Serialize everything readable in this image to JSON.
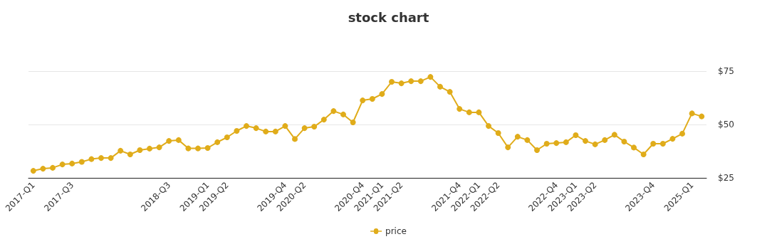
{
  "chart_data": {
    "type": "line",
    "title": "stock chart",
    "categories": [
      "2017-Q1",
      null,
      null,
      null,
      "2017-Q3",
      null,
      null,
      null,
      null,
      null,
      null,
      null,
      null,
      null,
      "2018-Q3",
      null,
      null,
      null,
      "2019-Q1",
      null,
      "2019-Q2",
      null,
      null,
      null,
      null,
      null,
      "2019-Q4",
      null,
      "2020-Q2",
      null,
      null,
      null,
      null,
      null,
      "2020-Q4",
      null,
      "2021-Q1",
      null,
      "2021-Q2",
      null,
      null,
      null,
      null,
      null,
      "2021-Q4",
      null,
      "2022-Q1",
      null,
      "2022-Q2",
      null,
      null,
      null,
      null,
      null,
      "2022-Q4",
      null,
      "2023-Q1",
      null,
      "2023-Q2",
      null,
      null,
      null,
      null,
      null,
      "2023-Q4",
      null,
      null,
      null,
      "2025-Q1",
      null
    ],
    "series": [
      {
        "name": "price",
        "color": "#e0ac1a",
        "values": [
          28.3,
          29.3,
          29.7,
          31.3,
          31.7,
          32.5,
          33.8,
          34.3,
          34.3,
          37.7,
          36.0,
          38.0,
          38.7,
          39.3,
          42.3,
          42.7,
          38.8,
          38.8,
          39.0,
          41.7,
          44.0,
          47.0,
          49.3,
          48.3,
          46.7,
          46.7,
          49.3,
          43.2,
          48.3,
          49.0,
          52.3,
          56.3,
          54.7,
          51.0,
          61.3,
          62.0,
          64.3,
          70.0,
          69.3,
          70.3,
          70.3,
          72.3,
          67.7,
          65.3,
          57.3,
          55.7,
          55.7,
          49.3,
          46.0,
          39.3,
          44.3,
          42.7,
          38.0,
          41.0,
          41.3,
          41.7,
          45.0,
          42.3,
          40.7,
          42.7,
          45.2,
          42.0,
          39.2,
          36.0,
          41.0,
          41.0,
          43.3,
          45.7,
          55.2,
          53.8
        ]
      }
    ],
    "ylim": [
      25,
      75
    ],
    "yticks": [
      {
        "value": 25,
        "label": "$25"
      },
      {
        "value": 50,
        "label": "$50"
      },
      {
        "value": 75,
        "label": "$75"
      }
    ],
    "grid": "y",
    "legend": "bottom",
    "marker": "circle",
    "line_style": "solid"
  }
}
